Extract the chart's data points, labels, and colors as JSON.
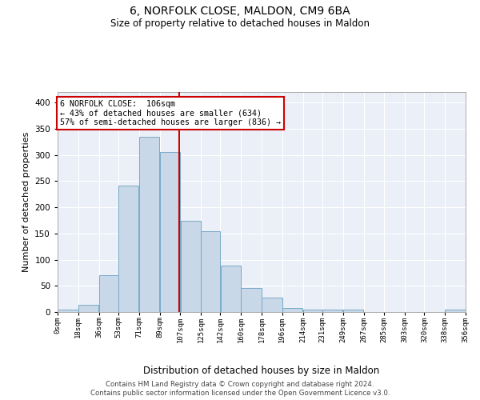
{
  "title": "6, NORFOLK CLOSE, MALDON, CM9 6BA",
  "subtitle": "Size of property relative to detached houses in Maldon",
  "xlabel": "Distribution of detached houses by size in Maldon",
  "ylabel": "Number of detached properties",
  "bar_color": "#c8d8e8",
  "bar_edge_color": "#7aaac8",
  "vline_x": 106,
  "vline_color": "#cc0000",
  "annotation_title": "6 NORFOLK CLOSE:  106sqm",
  "annotation_line1": "← 43% of detached houses are smaller (634)",
  "annotation_line2": "57% of semi-detached houses are larger (836) →",
  "annotation_box_color": "#ffffff",
  "annotation_box_edge": "#cc0000",
  "bins": [
    0,
    18,
    36,
    53,
    71,
    89,
    107,
    125,
    142,
    160,
    178,
    196,
    214,
    231,
    249,
    267,
    285,
    303,
    320,
    338,
    356
  ],
  "bin_labels": [
    "0sqm",
    "18sqm",
    "36sqm",
    "53sqm",
    "71sqm",
    "89sqm",
    "107sqm",
    "125sqm",
    "142sqm",
    "160sqm",
    "178sqm",
    "196sqm",
    "214sqm",
    "231sqm",
    "249sqm",
    "267sqm",
    "285sqm",
    "303sqm",
    "320sqm",
    "338sqm",
    "356sqm"
  ],
  "bar_heights": [
    4,
    14,
    71,
    241,
    334,
    305,
    174,
    155,
    88,
    46,
    27,
    8,
    5,
    5,
    4,
    0,
    0,
    0,
    0,
    4
  ],
  "ylim": [
    0,
    420
  ],
  "yticks": [
    0,
    50,
    100,
    150,
    200,
    250,
    300,
    350,
    400
  ],
  "background_color": "#eaeff8",
  "footer1": "Contains HM Land Registry data © Crown copyright and database right 2024.",
  "footer2": "Contains public sector information licensed under the Open Government Licence v3.0."
}
